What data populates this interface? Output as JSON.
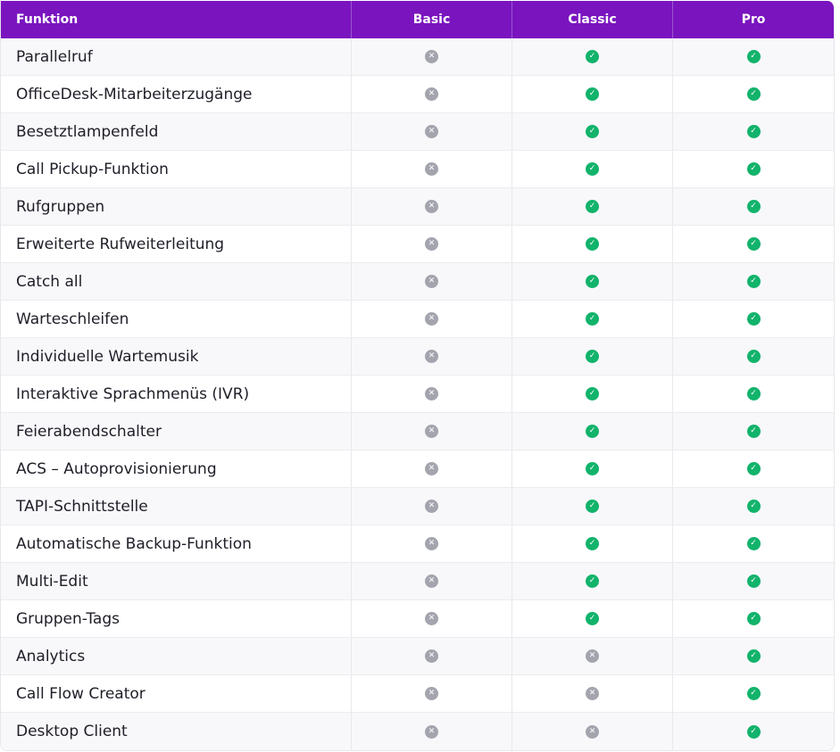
{
  "colors": {
    "header": "#7a14bf",
    "check": "#12b36b",
    "cross": "#a3a4ad"
  },
  "header": [
    "Funktion",
    "Basic",
    "Classic",
    "Pro"
  ],
  "rows": [
    {
      "feature": "Parallelruf",
      "basic": false,
      "classic": true,
      "pro": true
    },
    {
      "feature": "OfficeDesk-Mitarbeiterzugänge",
      "basic": false,
      "classic": true,
      "pro": true
    },
    {
      "feature": "Besetztlampenfeld",
      "basic": false,
      "classic": true,
      "pro": true
    },
    {
      "feature": "Call Pickup-Funktion",
      "basic": false,
      "classic": true,
      "pro": true
    },
    {
      "feature": "Rufgruppen",
      "basic": false,
      "classic": true,
      "pro": true
    },
    {
      "feature": "Erweiterte Rufweiterleitung",
      "basic": false,
      "classic": true,
      "pro": true
    },
    {
      "feature": "Catch all",
      "basic": false,
      "classic": true,
      "pro": true
    },
    {
      "feature": "Warteschleifen",
      "basic": false,
      "classic": true,
      "pro": true
    },
    {
      "feature": "Individuelle Wartemusik",
      "basic": false,
      "classic": true,
      "pro": true
    },
    {
      "feature": "Interaktive Sprachmenüs (IVR)",
      "basic": false,
      "classic": true,
      "pro": true
    },
    {
      "feature": "Feierabendschalter",
      "basic": false,
      "classic": true,
      "pro": true
    },
    {
      "feature": "ACS – Autoprovisionierung",
      "basic": false,
      "classic": true,
      "pro": true
    },
    {
      "feature": "TAPI-Schnittstelle",
      "basic": false,
      "classic": true,
      "pro": true
    },
    {
      "feature": "Automatische Backup-Funktion",
      "basic": false,
      "classic": true,
      "pro": true
    },
    {
      "feature": "Multi-Edit",
      "basic": false,
      "classic": true,
      "pro": true
    },
    {
      "feature": "Gruppen-Tags",
      "basic": false,
      "classic": true,
      "pro": true
    },
    {
      "feature": "Analytics",
      "basic": false,
      "classic": false,
      "pro": true
    },
    {
      "feature": "Call Flow Creator",
      "basic": false,
      "classic": false,
      "pro": true
    },
    {
      "feature": "Desktop Client",
      "basic": false,
      "classic": false,
      "pro": true
    }
  ]
}
